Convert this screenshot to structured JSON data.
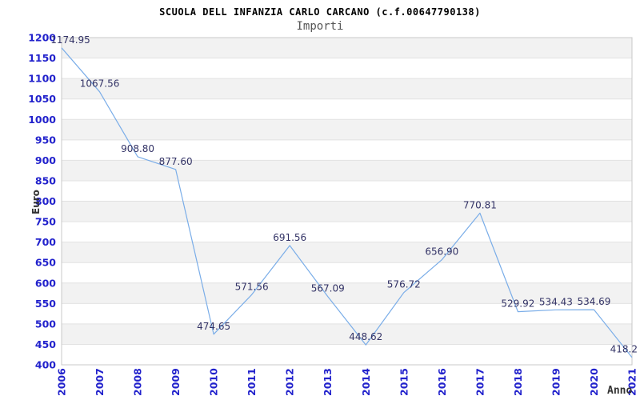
{
  "chart_data": {
    "type": "line",
    "title": "SCUOLA DELL INFANZIA CARLO CARCANO (c.f.00647790138)",
    "subtitle": "Importi",
    "xlabel": "Anno",
    "ylabel": "Euro",
    "categories": [
      "2006",
      "2007",
      "2008",
      "2009",
      "2010",
      "2011",
      "2012",
      "2013",
      "2014",
      "2015",
      "2016",
      "2017",
      "2018",
      "2019",
      "2020",
      "2021"
    ],
    "values": [
      1174.95,
      1067.56,
      908.8,
      877.6,
      474.65,
      571.56,
      691.56,
      567.09,
      448.62,
      576.72,
      656.9,
      770.81,
      529.92,
      534.43,
      534.69,
      418.2
    ],
    "point_labels": [
      "1174.95",
      "1067.56",
      "908.80",
      "877.60",
      "474.65",
      "571.56",
      "691.56",
      "567.09",
      "448.62",
      "576.72",
      "656.90",
      "770.81",
      "529.92",
      "534.43",
      "534.69",
      "418.2"
    ],
    "ylim": [
      400,
      1200
    ],
    "ytick_step": 50,
    "grid": true,
    "banded_background": true,
    "legend_position": "none",
    "colors": {
      "line": "#7aade8",
      "tick_label": "#2222cc",
      "point_label": "#333366",
      "band": "#f2f2f2",
      "gridline": "#e2e2e2",
      "plot_border": "#c8c8c8",
      "title": "#000000",
      "subtitle": "#555555",
      "axis_label": "#333333"
    }
  }
}
